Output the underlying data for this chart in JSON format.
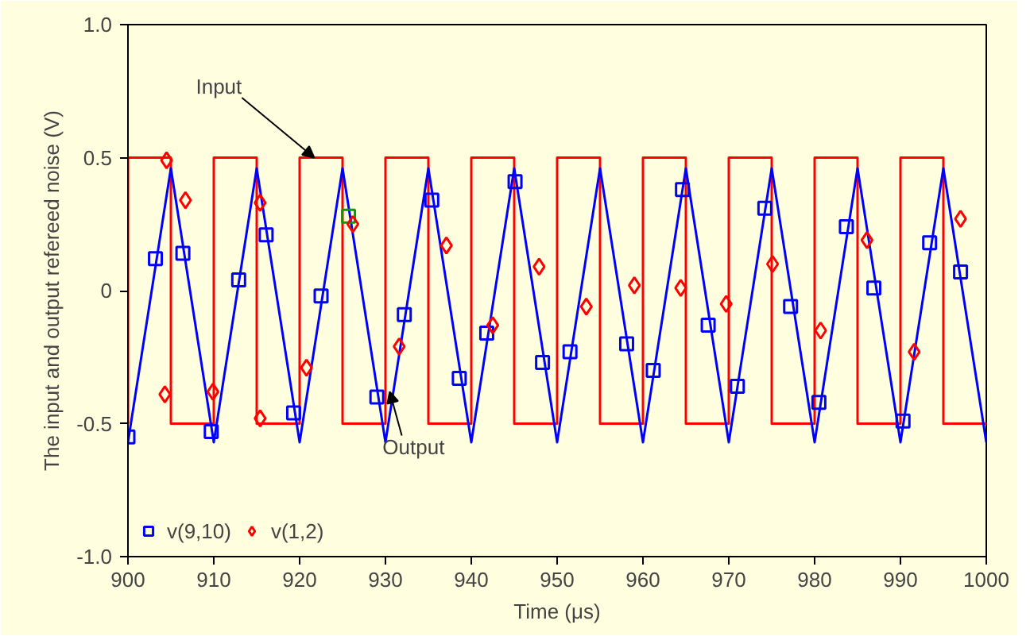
{
  "chart_data": {
    "type": "line",
    "xlabel": "Time (μs)",
    "ylabel": "The input and output refereed noise (V)",
    "xlim": [
      900,
      1000
    ],
    "ylim": [
      -1.0,
      1.0
    ],
    "xticks": [
      900,
      910,
      920,
      930,
      940,
      950,
      960,
      970,
      980,
      990,
      1000
    ],
    "yticks": [
      {
        "value": -1.0,
        "label": "-1.0"
      },
      {
        "value": -0.5,
        "label": "-0.5"
      },
      0,
      {
        "value": 0.5,
        "label": "0.5"
      },
      {
        "value": 1.0,
        "label": "1.0"
      }
    ],
    "grid": false,
    "legend": "bottom left",
    "annotations": [
      {
        "text": "Input",
        "x": 921.7,
        "y": 0.5
      },
      {
        "text": "Output",
        "x": 930.5,
        "y": -0.38
      }
    ],
    "series": [
      {
        "color": "#ff0000",
        "x": [
          900,
          900,
          905,
          905,
          910,
          910,
          915,
          915,
          920,
          920,
          925,
          925,
          930,
          930,
          935,
          935,
          940,
          940,
          945,
          945,
          950,
          950,
          955,
          955,
          960,
          960,
          965,
          965,
          970,
          970,
          975,
          975,
          980,
          980,
          985,
          985,
          990,
          990,
          995,
          995,
          1000
        ],
        "values": [
          -0.5,
          0.5,
          0.5,
          -0.5,
          -0.5,
          0.5,
          0.5,
          -0.5,
          -0.5,
          0.5,
          0.5,
          -0.5,
          -0.5,
          0.5,
          0.5,
          -0.5,
          -0.5,
          0.5,
          0.5,
          -0.5,
          -0.5,
          0.5,
          0.5,
          -0.5,
          -0.5,
          0.5,
          0.5,
          -0.5,
          -0.5,
          0.5,
          0.5,
          -0.5,
          -0.5,
          0.5,
          0.5,
          -0.5,
          -0.5,
          0.5,
          0.5,
          -0.5,
          -0.5
        ]
      },
      {
        "color": "#0000ff",
        "x": [
          900,
          905,
          910,
          915,
          920,
          925,
          930,
          935,
          940,
          945,
          950,
          955,
          960,
          965,
          970,
          975,
          980,
          985,
          990,
          995,
          1000
        ],
        "values": [
          -0.57,
          0.46,
          -0.57,
          0.46,
          -0.57,
          0.46,
          -0.57,
          0.46,
          -0.57,
          0.46,
          -0.57,
          0.46,
          -0.57,
          0.46,
          -0.57,
          0.46,
          -0.57,
          0.46,
          -0.57,
          0.46,
          -0.57
        ]
      },
      {
        "type": "scatter",
        "name": "v(9,10)",
        "marker": "square",
        "color": "#0000ff",
        "x": [
          900.0,
          903.2,
          906.4,
          909.7,
          912.9,
          916.1,
          919.3,
          922.5,
          925.7,
          929.0,
          932.2,
          935.4,
          938.6,
          941.8,
          945.1,
          948.3,
          951.5,
          958.1,
          961.2,
          964.6,
          967.6,
          971.0,
          974.2,
          977.2,
          980.5,
          983.7,
          986.9,
          990.3,
          993.4,
          997.0
        ],
        "values": [
          -0.55,
          0.12,
          0.14,
          -0.53,
          0.04,
          0.21,
          -0.46,
          -0.02,
          0.28,
          -0.4,
          -0.09,
          0.34,
          -0.33,
          -0.16,
          0.41,
          -0.27,
          -0.23,
          -0.2,
          -0.3,
          0.38,
          -0.13,
          -0.36,
          0.31,
          -0.06,
          -0.42,
          0.24,
          0.01,
          -0.49,
          0.18,
          0.07
        ],
        "colors": [
          "#0000ff",
          "#0000ff",
          "#0000ff",
          "#0000ff",
          "#0000ff",
          "#0000ff",
          "#0000ff",
          "#0000ff",
          "#00a000",
          "#0000ff",
          "#0000ff",
          "#0000ff",
          "#0000ff",
          "#0000ff",
          "#0000ff",
          "#0000ff",
          "#0000ff",
          "#0000ff",
          "#0000ff",
          "#0000ff",
          "#0000ff",
          "#0000ff",
          "#0000ff",
          "#0000ff",
          "#0000ff",
          "#0000ff",
          "#0000ff",
          "#0000ff",
          "#0000ff",
          "#0000ff"
        ]
      },
      {
        "type": "scatter",
        "name": "v(1,2)",
        "marker": "diamond",
        "color": "#ff0000",
        "x": [
          904.5,
          904.3,
          906.7,
          909.9,
          915.4,
          915.4,
          920.8,
          926.2,
          931.6,
          937.1,
          942.5,
          947.9,
          953.4,
          959.0,
          964.4,
          969.7,
          975.1,
          980.7,
          986.1,
          991.6,
          997.0
        ],
        "values": [
          0.49,
          -0.39,
          0.34,
          -0.38,
          0.33,
          -0.48,
          -0.29,
          0.25,
          -0.21,
          0.17,
          -0.13,
          0.09,
          -0.06,
          0.02,
          0.01,
          -0.05,
          0.1,
          -0.15,
          0.19,
          -0.23,
          0.27
        ]
      }
    ]
  }
}
